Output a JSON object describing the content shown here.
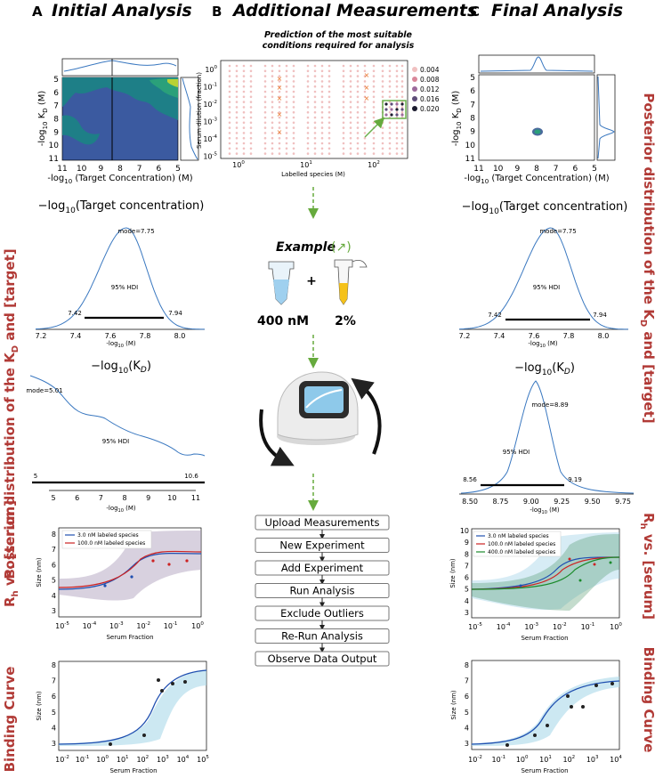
{
  "panels": {
    "A": {
      "letter": "A",
      "title": "Initial Analysis"
    },
    "B": {
      "letter": "B",
      "title": "Additional Measurements"
    },
    "C": {
      "letter": "C",
      "title": "Final Analysis"
    }
  },
  "side_labels": {
    "posterior": "Posterior distribution of the K",
    "posterior_sub": "D",
    "posterior_tail": " and [target]",
    "rh": "R",
    "rh_sub": "h",
    "rh_tail": " vs. [serum]",
    "binding": "Binding Curve"
  },
  "contour": {
    "ylabel": "-log",
    "ylabel_sub": "10",
    "ylabel_tail": " K",
    "ylabel_sub2": "D",
    "ylabel_unit": " (M)",
    "xlabel": "-log",
    "xlabel_sub": "10",
    "xlabel_tail": " (Target Concentration) (M)",
    "xticks": [
      "11",
      "10",
      "9",
      "8",
      "7",
      "6",
      "5"
    ],
    "yticks": [
      "5",
      "6",
      "7",
      "8",
      "9",
      "10",
      "11"
    ]
  },
  "target_hist": {
    "title": "−log",
    "title_sub": "10",
    "title_tail": "(Target concentration)",
    "mode": "mode=7.75",
    "hdi": "95% HDI",
    "hdi_low": "7.42",
    "hdi_high": "7.94",
    "xticks": [
      "7.2",
      "7.4",
      "7.6",
      "7.8",
      "8.0"
    ],
    "xlabel": "-log",
    "xlabel_sub": "10",
    "xlabel_tail": " (M)"
  },
  "kd_hist_A": {
    "title": "−log",
    "title_sub": "10",
    "title_tail": "(K",
    "title_sub2": "D",
    "title_end": ")",
    "mode": "mode=5.01",
    "hdi": "95% HDI",
    "hdi_low": "5",
    "hdi_high": "10.6",
    "xticks": [
      "5",
      "6",
      "7",
      "8",
      "9",
      "10",
      "11"
    ],
    "xlabel": "-log",
    "xlabel_sub": "10",
    "xlabel_tail": " (M)"
  },
  "kd_hist_C": {
    "mode": "mode=8.89",
    "hdi": "95% HDI",
    "hdi_low": "8.56",
    "hdi_high": "9.19",
    "xticks": [
      "8.50",
      "8.75",
      "9.00",
      "9.25",
      "9.50",
      "9.75"
    ]
  },
  "rh_A": {
    "legend": [
      "3.0 nM labeled species",
      "100.0 nM labeled species"
    ],
    "ylabel": "Size (nm)",
    "xlabel": "Serum Fraction",
    "yticks": [
      "3",
      "4",
      "5",
      "6",
      "7",
      "8"
    ],
    "xticks": [
      "10",
      "10",
      "10",
      "10",
      "10",
      "10"
    ],
    "xexp": [
      "-5",
      "-4",
      "-3",
      "-2",
      "-1",
      "0"
    ]
  },
  "rh_C": {
    "legend": [
      "3.0 nM labeled species",
      "100.0 nM labeled species",
      "400.0 nM labeled species"
    ],
    "ylabel": "Size (nm)",
    "xlabel": "Serum Fraction",
    "yticks": [
      "3",
      "4",
      "5",
      "6",
      "7",
      "8",
      "9",
      "10"
    ],
    "xticks": [
      "10",
      "10",
      "10",
      "10",
      "10",
      "10"
    ],
    "xexp": [
      "-5",
      "-4",
      "-3",
      "-2",
      "-1",
      "0"
    ]
  },
  "binding_A": {
    "ylabel": "Size (nm)",
    "xlabel": "Serum Fraction",
    "yticks": [
      "3",
      "4",
      "5",
      "6",
      "7",
      "8"
    ],
    "xticks": [
      "10",
      "10",
      "10",
      "10",
      "10",
      "10",
      "10",
      "10"
    ],
    "xexp": [
      "-2",
      "-1",
      "0",
      "1",
      "2",
      "3",
      "4",
      "5"
    ]
  },
  "binding_C": {
    "ylabel": "Size (nm)",
    "xlabel": "Serum Fraction",
    "yticks": [
      "3",
      "4",
      "5",
      "6",
      "7",
      "8"
    ],
    "xticks": [
      "10",
      "10",
      "10",
      "10",
      "10",
      "10",
      "10"
    ],
    "xexp": [
      "-2",
      "-1",
      "0",
      "1",
      "2",
      "3",
      "4"
    ]
  },
  "prediction": {
    "title1": "Prediction of the most suitable",
    "title2": "conditions required for analysis",
    "ylabel": "Serum dilution (fraction)",
    "xlabel": "Labelled species (M)",
    "yexp": [
      "0",
      "-1",
      "-2",
      "-3",
      "-4",
      "-5"
    ],
    "xexp": [
      "0",
      "1",
      "2"
    ],
    "yfirst": "10",
    "legend": [
      "0.004",
      "0.008",
      "0.012",
      "0.016",
      "0.020"
    ],
    "legend_colors": [
      "#f0c0c0",
      "#d9879a",
      "#9c6a9c",
      "#5e4d79",
      "#1b1b2e"
    ]
  },
  "example": {
    "label": "Example",
    "conc": "400 nM",
    "plus": "+",
    "serum": "2%"
  },
  "steps": [
    "Upload Measurements",
    "New Experiment",
    "Add Experiment",
    "Run Analysis",
    "Exclude Outliers",
    "Re-Run Analysis",
    "Observe Data Output"
  ]
}
